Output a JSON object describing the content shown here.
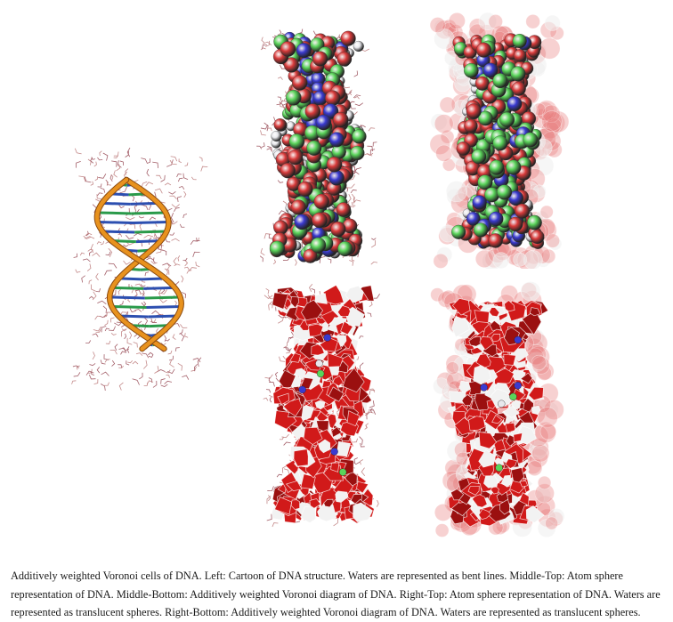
{
  "caption": "Additively weighted Voronoi cells of DNA. Left: Cartoon of DNA structure. Waters are represented as bent lines. Middle-Top: Atom sphere representation of DNA. Middle-Bottom: Additively weighted Voronoi diagram of DNA. Right-Top: Atom sphere representation of DNA. Waters are represented as translucent spheres. Right-Bottom: Additively weighted Voronoi diagram of DNA. Waters are represented as translucent spheres.",
  "colors": {
    "backbone": "#e8921e",
    "oxygen": "#d93a3a",
    "carbon": "#5ad45a",
    "nitrogen": "#3a3ad0",
    "hydrogen": "#e8e8ec",
    "water_line": "#a4606a",
    "voronoi_red": "#d11a1a"
  }
}
